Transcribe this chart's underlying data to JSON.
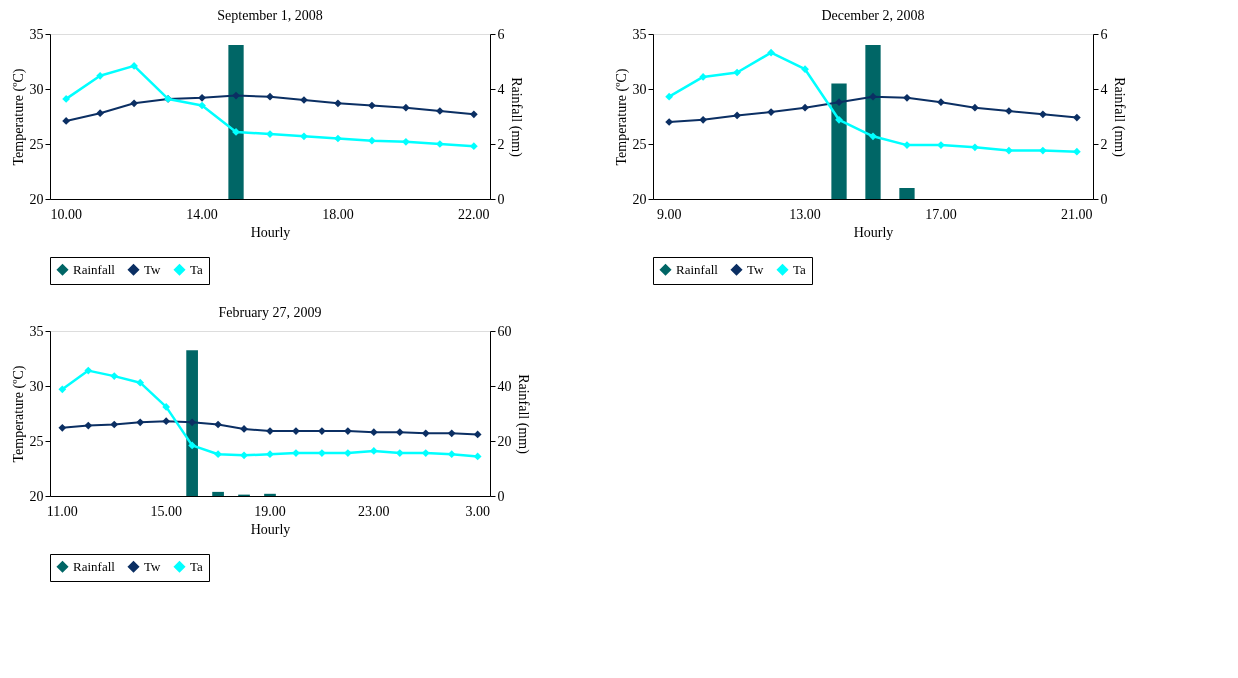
{
  "chart_data": [
    {
      "type": "line",
      "title": "September 1, 2008",
      "xlabel": "Hourly",
      "ylabel": "Temperature (ºC)",
      "y2label": "Rainfall (mm)",
      "categories": [
        "10.00",
        null,
        null,
        null,
        "14.00",
        null,
        null,
        null,
        "18.00",
        null,
        null,
        null,
        "22.00"
      ],
      "series": [
        {
          "name": "Rainfall",
          "type": "bar",
          "axis": "y2",
          "color": "#006666",
          "values": [
            0,
            0,
            0,
            0,
            0,
            5.6,
            0,
            0,
            0,
            0,
            0,
            0,
            0
          ]
        },
        {
          "name": "Tw",
          "color": "#0b2f63",
          "values": [
            27.1,
            27.8,
            28.7,
            29.1,
            29.2,
            29.4,
            29.3,
            29.0,
            28.7,
            28.5,
            28.3,
            28.0,
            27.7
          ]
        },
        {
          "name": "Ta",
          "color": "#00ffff",
          "values": [
            29.1,
            31.2,
            32.1,
            29.1,
            28.5,
            26.1,
            25.9,
            25.7,
            25.5,
            25.3,
            25.2,
            25.0,
            24.8
          ]
        }
      ],
      "ylim": [
        20,
        35
      ],
      "yticks": [
        20,
        25,
        30,
        35
      ],
      "y2lim": [
        0,
        6
      ],
      "y2ticks": [
        0,
        2,
        4,
        6
      ],
      "grid": false,
      "legend": "bottom",
      "marker": "diamond",
      "line_style": "solid"
    },
    {
      "type": "line",
      "title": "December 2, 2008",
      "xlabel": "Hourly",
      "ylabel": "Temperature (ºC)",
      "y2label": "Rainfall (mm)",
      "categories": [
        "9.00",
        null,
        null,
        null,
        "13.00",
        null,
        null,
        null,
        "17.00",
        null,
        null,
        null,
        "21.00"
      ],
      "series": [
        {
          "name": "Rainfall",
          "type": "bar",
          "axis": "y2",
          "color": "#006666",
          "values": [
            0,
            0,
            0,
            0,
            0,
            4.2,
            5.6,
            0.4,
            0,
            0,
            0,
            0,
            0
          ]
        },
        {
          "name": "Tw",
          "color": "#0b2f63",
          "values": [
            27.0,
            27.2,
            27.6,
            27.9,
            28.3,
            28.8,
            29.3,
            29.2,
            28.8,
            28.3,
            28.0,
            27.7,
            27.4
          ]
        },
        {
          "name": "Ta",
          "color": "#00ffff",
          "values": [
            29.3,
            31.1,
            31.5,
            33.3,
            31.8,
            27.2,
            25.7,
            24.9,
            24.9,
            24.7,
            24.4,
            24.4,
            24.3
          ]
        }
      ],
      "ylim": [
        20,
        35
      ],
      "yticks": [
        20,
        25,
        30,
        35
      ],
      "y2lim": [
        0,
        6
      ],
      "y2ticks": [
        0,
        2,
        4,
        6
      ],
      "grid": false,
      "legend": "bottom",
      "marker": "diamond",
      "line_style": "solid"
    },
    {
      "type": "line",
      "title": "February 27, 2009",
      "xlabel": "Hourly",
      "ylabel": "Temperature (ºC)",
      "y2label": "Rainfall (mm)",
      "categories": [
        "11.00",
        null,
        null,
        null,
        "15.00",
        null,
        null,
        null,
        "19.00",
        null,
        null,
        null,
        "23.00",
        null,
        null,
        null,
        "3.00"
      ],
      "series": [
        {
          "name": "Rainfall",
          "type": "bar",
          "axis": "y2",
          "color": "#006666",
          "values": [
            0,
            0,
            0,
            0,
            0,
            53,
            1.5,
            0.5,
            0.8,
            0,
            0,
            0,
            0,
            0,
            0,
            0,
            0
          ]
        },
        {
          "name": "Tw",
          "color": "#0b2f63",
          "values": [
            26.2,
            26.4,
            26.5,
            26.7,
            26.8,
            26.7,
            26.5,
            26.1,
            25.9,
            25.9,
            25.9,
            25.9,
            25.8,
            25.8,
            25.7,
            25.7,
            25.6
          ]
        },
        {
          "name": "Ta",
          "color": "#00ffff",
          "values": [
            29.7,
            31.4,
            30.9,
            30.3,
            28.1,
            24.6,
            23.8,
            23.7,
            23.8,
            23.9,
            23.9,
            23.9,
            24.1,
            23.9,
            23.9,
            23.8,
            23.6
          ]
        }
      ],
      "ylim": [
        20,
        35
      ],
      "yticks": [
        20,
        25,
        30,
        35
      ],
      "y2lim": [
        0,
        60
      ],
      "y2ticks": [
        0,
        20,
        40,
        60
      ],
      "grid": false,
      "legend": "bottom",
      "marker": "diamond",
      "line_style": "solid"
    }
  ]
}
